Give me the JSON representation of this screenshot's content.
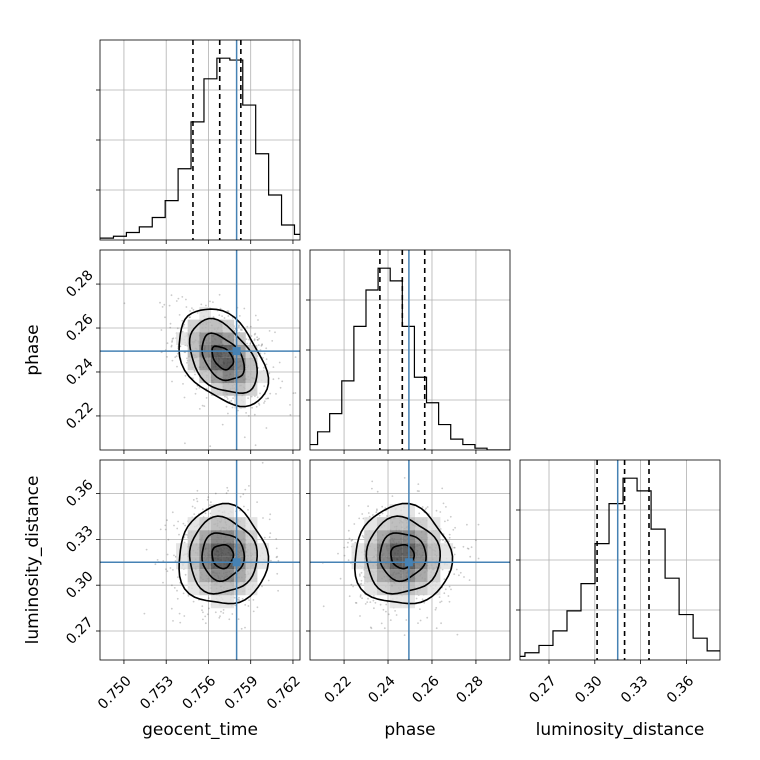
{
  "chart_data": {
    "type": "corner",
    "parameters": [
      "geocent_time",
      "phase",
      "luminosity_distance"
    ],
    "axis_labels": {
      "geocent_time": "geocent_time",
      "phase": "phase",
      "luminosity_distance": "luminosity_distance"
    },
    "ranges": {
      "geocent_time": [
        0.7483,
        0.7625
      ],
      "phase": [
        0.2045,
        0.2955
      ],
      "luminosity_distance": [
        0.251,
        0.382
      ]
    },
    "ticks": {
      "geocent_time": [
        0.75,
        0.753,
        0.756,
        0.759,
        0.762
      ],
      "phase": [
        0.22,
        0.24,
        0.26,
        0.28
      ],
      "luminosity_distance": [
        0.27,
        0.3,
        0.33,
        0.36
      ]
    },
    "tick_labels": {
      "geocent_time": [
        "0.750",
        "0.753",
        "0.756",
        "0.759",
        "0.762"
      ],
      "phase": [
        "0.22",
        "0.24",
        "0.26",
        "0.28"
      ],
      "luminosity_distance": [
        "0.27",
        "0.30",
        "0.33",
        "0.36"
      ]
    },
    "truths": {
      "geocent_time": 0.758,
      "phase": 0.2495,
      "luminosity_distance": 0.315
    },
    "quantiles": {
      "geocent_time": [
        0.7549,
        0.7568,
        0.7583
      ],
      "phase": [
        0.2363,
        0.2465,
        0.2567
      ],
      "luminosity_distance": [
        0.3015,
        0.3195,
        0.3355
      ]
    },
    "means": {
      "geocent_time": 0.757,
      "phase": 0.2465,
      "luminosity_distance": 0.319
    },
    "sigmas": {
      "geocent_time": 0.0015,
      "phase": 0.0105,
      "luminosity_distance": 0.0155
    },
    "correlations": [
      {
        "x": "geocent_time",
        "y": "phase",
        "rho": -0.4
      },
      {
        "x": "geocent_time",
        "y": "luminosity_distance",
        "rho": 0.0
      },
      {
        "x": "phase",
        "y": "luminosity_distance",
        "rho": 0.0
      }
    ],
    "histograms": {
      "geocent_time": [
        1,
        1,
        2,
        4,
        7,
        12,
        21,
        38,
        63,
        86,
        97,
        96,
        72,
        46,
        24,
        8,
        3,
        1,
        0,
        0
      ],
      "phase": [
        0,
        1,
        3,
        10,
        20,
        38,
        68,
        88,
        100,
        93,
        68,
        40,
        26,
        14,
        6,
        3,
        1,
        0,
        0,
        0
      ],
      "luminosity_distance": [
        0,
        1,
        2,
        4,
        8,
        16,
        27,
        42,
        64,
        86,
        100,
        93,
        72,
        45,
        25,
        12,
        5,
        2,
        1,
        0
      ]
    },
    "colors": {
      "truth": "#4682b4",
      "line": "#000000",
      "grid": "#b0b0b0"
    },
    "grid": true,
    "scatter_points_shown": true,
    "contour_levels": 3
  }
}
